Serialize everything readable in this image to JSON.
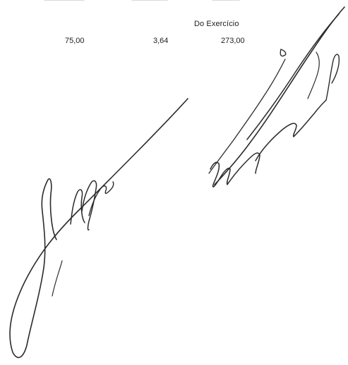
{
  "table": {
    "column_header": "Do Exercício",
    "values": [
      "75,00",
      "3,64",
      "273,00"
    ]
  },
  "colors": {
    "ink": "#1d1d1d",
    "signature_ink": "#2b2b2b",
    "background": "#ffffff"
  }
}
